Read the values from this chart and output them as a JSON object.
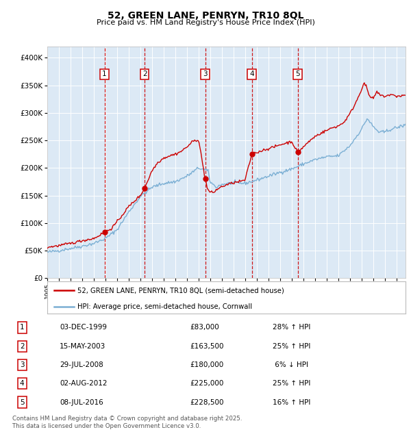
{
  "title": "52, GREEN LANE, PENRYN, TR10 8QL",
  "subtitle": "Price paid vs. HM Land Registry's House Price Index (HPI)",
  "legend_line1": "52, GREEN LANE, PENRYN, TR10 8QL (semi-detached house)",
  "legend_line2": "HPI: Average price, semi-detached house, Cornwall",
  "footer": "Contains HM Land Registry data © Crown copyright and database right 2025.\nThis data is licensed under the Open Government Licence v3.0.",
  "transactions": [
    {
      "num": 1,
      "date": "03-DEC-1999",
      "year": 1999.92,
      "price": 83000,
      "pct": "28% ↑ HPI"
    },
    {
      "num": 2,
      "date": "15-MAY-2003",
      "year": 2003.37,
      "price": 163500,
      "pct": "25% ↑ HPI"
    },
    {
      "num": 3,
      "date": "29-JUL-2008",
      "year": 2008.57,
      "price": 180000,
      "pct": "6% ↓ HPI"
    },
    {
      "num": 4,
      "date": "02-AUG-2012",
      "year": 2012.58,
      "price": 225000,
      "pct": "25% ↑ HPI"
    },
    {
      "num": 5,
      "date": "08-JUL-2016",
      "year": 2016.52,
      "price": 228500,
      "pct": "16% ↑ HPI"
    }
  ],
  "red_color": "#cc0000",
  "blue_color": "#7bafd4",
  "background_color": "#dce9f5",
  "plot_bg": "#ffffff",
  "dashed_color": "#cc0000",
  "ylim": [
    0,
    420000
  ],
  "xlim_start": 1995.0,
  "xlim_end": 2025.8
}
